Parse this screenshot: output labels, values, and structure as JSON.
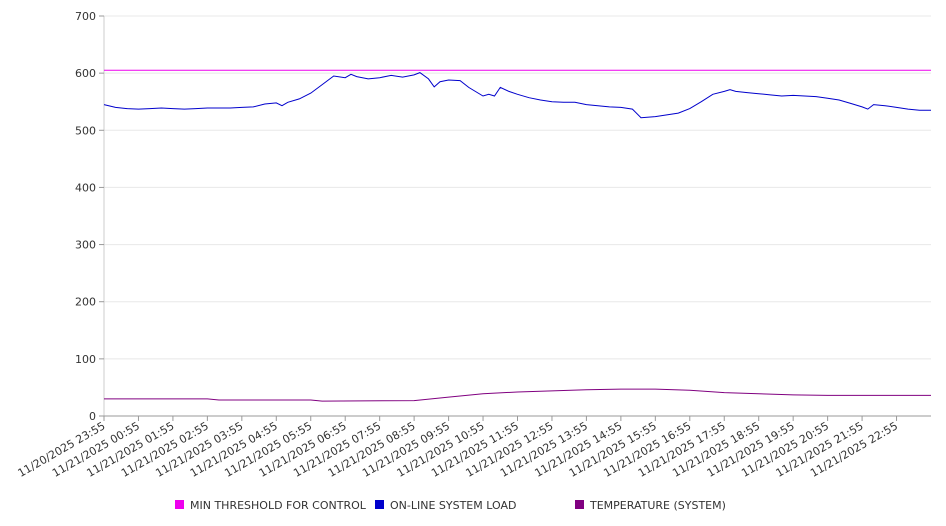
{
  "chart_data": {
    "type": "line",
    "title": "",
    "xlabel": "",
    "ylabel": "",
    "ylim": [
      0,
      700
    ],
    "yticks": [
      0,
      100,
      200,
      300,
      400,
      500,
      600,
      700
    ],
    "grid": true,
    "legend_position": "bottom",
    "x_tick_labels": [
      "11/20/2025 23:55",
      "11/21/2025 00:55",
      "11/21/2025 01:55",
      "11/21/2025 02:55",
      "11/21/2025 03:55",
      "11/21/2025 04:55",
      "11/21/2025 05:55",
      "11/21/2025 06:55",
      "11/21/2025 07:55",
      "11/21/2025 08:55",
      "11/21/2025 09:55",
      "11/21/2025 10:55",
      "11/21/2025 11:55",
      "11/21/2025 12:55",
      "11/21/2025 13:55",
      "11/21/2025 14:55",
      "11/21/2025 15:55",
      "11/21/2025 16:55",
      "11/21/2025 17:55",
      "11/21/2025 18:55",
      "11/21/2025 19:55",
      "11/21/2025 20:55",
      "11/21/2025 21:55",
      "11/21/2025 22:55"
    ],
    "series": [
      {
        "name": "MIN THRESHOLD FOR CONTROL",
        "color": "#ee00ee",
        "points": [
          [
            "11/20/2025 23:55",
            605
          ],
          [
            "11/21/2025 23:55",
            605
          ]
        ]
      },
      {
        "name": "ON-LINE SYSTEM LOAD",
        "color": "#0000cc",
        "points": [
          [
            "11/20/2025 23:55",
            545
          ],
          [
            "11/21/2025 00:15",
            540
          ],
          [
            "11/21/2025 00:35",
            538
          ],
          [
            "11/21/2025 00:55",
            537
          ],
          [
            "11/21/2025 01:15",
            538
          ],
          [
            "11/21/2025 01:35",
            539
          ],
          [
            "11/21/2025 01:55",
            538
          ],
          [
            "11/21/2025 02:15",
            537
          ],
          [
            "11/21/2025 02:35",
            538
          ],
          [
            "11/21/2025 02:55",
            539
          ],
          [
            "11/21/2025 03:15",
            539
          ],
          [
            "11/21/2025 03:35",
            539
          ],
          [
            "11/21/2025 03:55",
            540
          ],
          [
            "11/21/2025 04:15",
            541
          ],
          [
            "11/21/2025 04:35",
            546
          ],
          [
            "11/21/2025 04:55",
            548
          ],
          [
            "11/21/2025 05:05",
            543
          ],
          [
            "11/21/2025 05:15",
            549
          ],
          [
            "11/21/2025 05:35",
            555
          ],
          [
            "11/21/2025 05:55",
            565
          ],
          [
            "11/21/2025 06:15",
            580
          ],
          [
            "11/21/2025 06:35",
            595
          ],
          [
            "11/21/2025 06:55",
            592
          ],
          [
            "11/21/2025 07:05",
            598
          ],
          [
            "11/21/2025 07:15",
            594
          ],
          [
            "11/21/2025 07:35",
            590
          ],
          [
            "11/21/2025 07:55",
            592
          ],
          [
            "11/21/2025 08:15",
            596
          ],
          [
            "11/21/2025 08:35",
            593
          ],
          [
            "11/21/2025 08:55",
            597
          ],
          [
            "11/21/2025 09:05",
            601
          ],
          [
            "11/21/2025 09:20",
            590
          ],
          [
            "11/21/2025 09:30",
            576
          ],
          [
            "11/21/2025 09:40",
            585
          ],
          [
            "11/21/2025 09:55",
            588
          ],
          [
            "11/21/2025 10:15",
            587
          ],
          [
            "11/21/2025 10:30",
            575
          ],
          [
            "11/21/2025 10:55",
            560
          ],
          [
            "11/21/2025 11:05",
            563
          ],
          [
            "11/21/2025 11:15",
            560
          ],
          [
            "11/21/2025 11:25",
            575
          ],
          [
            "11/21/2025 11:40",
            568
          ],
          [
            "11/21/2025 11:55",
            563
          ],
          [
            "11/21/2025 12:15",
            557
          ],
          [
            "11/21/2025 12:35",
            553
          ],
          [
            "11/21/2025 12:55",
            550
          ],
          [
            "11/21/2025 13:15",
            549
          ],
          [
            "11/21/2025 13:35",
            549
          ],
          [
            "11/21/2025 13:55",
            545
          ],
          [
            "11/21/2025 14:15",
            543
          ],
          [
            "11/21/2025 14:35",
            541
          ],
          [
            "11/21/2025 14:55",
            540
          ],
          [
            "11/21/2025 15:15",
            537
          ],
          [
            "11/21/2025 15:30",
            522
          ],
          [
            "11/21/2025 15:55",
            524
          ],
          [
            "11/21/2025 16:15",
            527
          ],
          [
            "11/21/2025 16:35",
            530
          ],
          [
            "11/21/2025 16:55",
            538
          ],
          [
            "11/21/2025 17:15",
            550
          ],
          [
            "11/21/2025 17:35",
            563
          ],
          [
            "11/21/2025 17:55",
            568
          ],
          [
            "11/21/2025 18:05",
            571
          ],
          [
            "11/21/2025 18:15",
            568
          ],
          [
            "11/21/2025 18:35",
            566
          ],
          [
            "11/21/2025 18:55",
            564
          ],
          [
            "11/21/2025 19:15",
            562
          ],
          [
            "11/21/2025 19:35",
            560
          ],
          [
            "11/21/2025 19:55",
            561
          ],
          [
            "11/21/2025 20:15",
            560
          ],
          [
            "11/21/2025 20:35",
            559
          ],
          [
            "11/21/2025 20:55",
            556
          ],
          [
            "11/21/2025 21:15",
            553
          ],
          [
            "11/21/2025 21:35",
            547
          ],
          [
            "11/21/2025 21:55",
            541
          ],
          [
            "11/21/2025 22:05",
            537
          ],
          [
            "11/21/2025 22:15",
            545
          ],
          [
            "11/21/2025 22:35",
            543
          ],
          [
            "11/21/2025 22:55",
            540
          ],
          [
            "11/21/2025 23:15",
            537
          ],
          [
            "11/21/2025 23:35",
            535
          ],
          [
            "11/21/2025 23:55",
            535
          ]
        ]
      },
      {
        "name": "TEMPERATURE (SYSTEM)",
        "color": "#800080",
        "points": [
          [
            "11/20/2025 23:55",
            30
          ],
          [
            "11/21/2025 02:55",
            30
          ],
          [
            "11/21/2025 03:15",
            28
          ],
          [
            "11/21/2025 05:55",
            28
          ],
          [
            "11/21/2025 06:15",
            26
          ],
          [
            "11/21/2025 08:55",
            27
          ],
          [
            "11/21/2025 09:55",
            33
          ],
          [
            "11/21/2025 10:55",
            39
          ],
          [
            "11/21/2025 11:55",
            42
          ],
          [
            "11/21/2025 12:55",
            44
          ],
          [
            "11/21/2025 13:55",
            46
          ],
          [
            "11/21/2025 14:55",
            47
          ],
          [
            "11/21/2025 15:55",
            47
          ],
          [
            "11/21/2025 16:55",
            45
          ],
          [
            "11/21/2025 17:55",
            41
          ],
          [
            "11/21/2025 18:55",
            39
          ],
          [
            "11/21/2025 19:55",
            37
          ],
          [
            "11/21/2025 20:55",
            36
          ],
          [
            "11/21/2025 21:55",
            36
          ],
          [
            "11/21/2025 22:55",
            36
          ],
          [
            "11/21/2025 23:55",
            36
          ]
        ]
      }
    ]
  }
}
